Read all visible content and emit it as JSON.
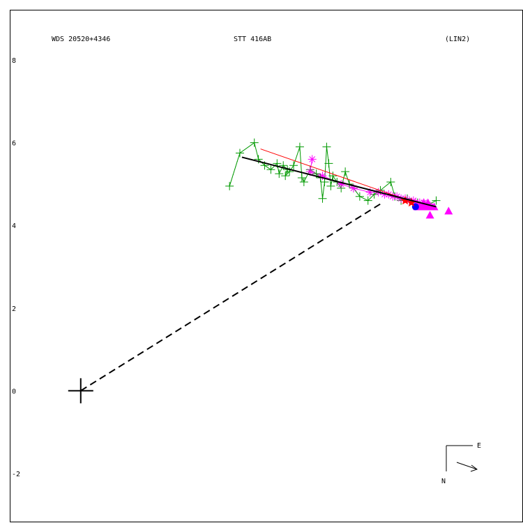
{
  "header": {
    "left": "WDS 20520+4346",
    "center": "STT 416AB",
    "right": "(LIN2)"
  },
  "compass": {
    "east": "E",
    "north": "N"
  },
  "chart_data": {
    "type": "scatter",
    "x_range": [
      -1.7,
      10.7
    ],
    "y_range": [
      -3.2,
      9.2
    ],
    "y_ticks": [
      8,
      6,
      4,
      2,
      0,
      -2
    ],
    "y_tick_labels": [
      "8",
      "6",
      "4",
      "2",
      "0",
      "-2"
    ],
    "grid": false,
    "primary": [
      0,
      0
    ],
    "colors": {
      "green": "#009900",
      "magenta": "#ff00ff",
      "red": "#ff0000",
      "black": "#000000",
      "blue": "#0000ff"
    },
    "fit_line": {
      "from": [
        3.9,
        5.65
      ],
      "to": [
        8.6,
        4.45
      ]
    },
    "red_line": {
      "from": [
        4.35,
        5.85
      ],
      "to": [
        7.95,
        4.6
      ]
    },
    "dashed_line": {
      "from": [
        0,
        0
      ],
      "to": [
        7.3,
        4.55
      ]
    },
    "dotted_line": {
      "from": [
        3.85,
        5.75
      ],
      "to": [
        3.6,
        4.95
      ]
    },
    "micrometer": [
      [
        3.6,
        4.95
      ],
      [
        3.85,
        5.75
      ],
      [
        4.2,
        6.0
      ],
      [
        4.3,
        5.6
      ],
      [
        4.45,
        5.45
      ],
      [
        4.6,
        5.35
      ],
      [
        4.75,
        5.5
      ],
      [
        4.8,
        5.25
      ],
      [
        4.9,
        5.45
      ],
      [
        5.0,
        5.35
      ],
      [
        4.95,
        5.2
      ],
      [
        5.05,
        5.3
      ],
      [
        5.15,
        5.45
      ],
      [
        5.3,
        5.9
      ],
      [
        5.35,
        5.15
      ],
      [
        5.4,
        5.05
      ],
      [
        5.55,
        5.35
      ],
      [
        5.7,
        5.25
      ],
      [
        5.8,
        5.15
      ],
      [
        5.85,
        4.65
      ],
      [
        5.9,
        5.05
      ],
      [
        5.95,
        5.9
      ],
      [
        6.0,
        5.5
      ],
      [
        6.05,
        4.95
      ],
      [
        6.1,
        5.2
      ],
      [
        6.2,
        5.05
      ],
      [
        6.3,
        4.9
      ],
      [
        6.4,
        5.3
      ],
      [
        6.5,
        5.0
      ],
      [
        6.6,
        4.9
      ],
      [
        6.75,
        4.7
      ],
      [
        6.95,
        4.6
      ],
      [
        7.1,
        4.75
      ],
      [
        7.25,
        4.85
      ],
      [
        7.5,
        5.05
      ],
      [
        7.6,
        4.7
      ],
      [
        7.75,
        4.6
      ],
      [
        7.9,
        4.65
      ],
      [
        8.15,
        4.55
      ],
      [
        8.4,
        4.5
      ],
      [
        8.6,
        4.6
      ]
    ],
    "speckle": [
      [
        5.6,
        5.6
      ],
      [
        5.55,
        5.3
      ],
      [
        5.85,
        5.2
      ],
      [
        6.3,
        5.0
      ],
      [
        6.6,
        4.9
      ],
      [
        7.0,
        4.8
      ],
      [
        7.2,
        4.8
      ],
      [
        7.35,
        4.75
      ],
      [
        7.45,
        4.75
      ],
      [
        7.55,
        4.7
      ],
      [
        7.65,
        4.7
      ],
      [
        7.75,
        4.65
      ],
      [
        7.85,
        4.65
      ],
      [
        7.95,
        4.6
      ],
      [
        8.05,
        4.6
      ],
      [
        8.1,
        4.55
      ],
      [
        8.2,
        4.55
      ],
      [
        8.3,
        4.55
      ],
      [
        8.4,
        4.5
      ]
    ],
    "stars": [
      [
        7.85,
        4.6
      ],
      [
        8.0,
        4.55
      ]
    ],
    "circles": [
      [
        8.1,
        4.45
      ]
    ],
    "triangles": [
      [
        8.15,
        4.45
      ],
      [
        8.2,
        4.45
      ],
      [
        8.25,
        4.45
      ],
      [
        8.3,
        4.45
      ],
      [
        8.35,
        4.45
      ],
      [
        8.4,
        4.45
      ],
      [
        8.45,
        4.45
      ],
      [
        8.5,
        4.45
      ],
      [
        8.55,
        4.45
      ],
      [
        8.3,
        4.55
      ],
      [
        8.4,
        4.55
      ],
      [
        8.45,
        4.25
      ],
      [
        8.9,
        4.35
      ]
    ]
  }
}
